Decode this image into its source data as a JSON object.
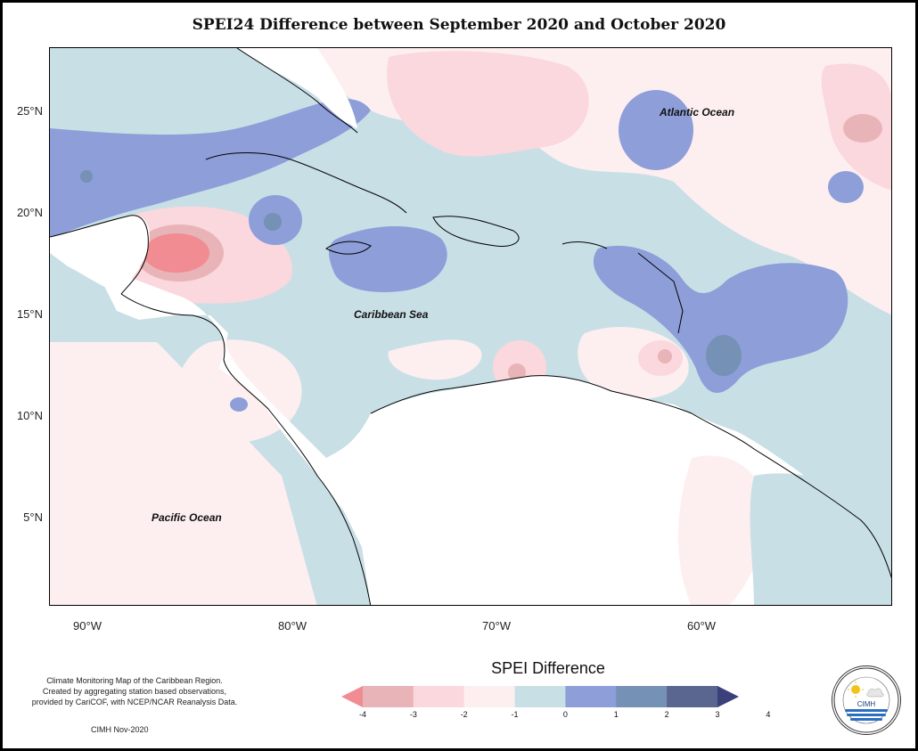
{
  "title": "SPEI24 Difference between September 2020 and October 2020",
  "map": {
    "lat_ticks": [
      "25°N",
      "20°N",
      "15°N",
      "10°N",
      "5°N"
    ],
    "lon_ticks": [
      "90°W",
      "80°W",
      "70°W",
      "60°W"
    ],
    "labels": {
      "atlantic": "Atlantic Ocean",
      "caribbean": "Caribbean Sea",
      "pacific": "Pacific Ocean"
    }
  },
  "legend": {
    "title": "SPEI Difference",
    "ticks": [
      "-4",
      "-3",
      "-2",
      "-1",
      "0",
      "1",
      "2",
      "3",
      "4"
    ],
    "colors": [
      "#f08c92",
      "#e8b4b8",
      "#fbd7de",
      "#fdeff0",
      "#c9dfe6",
      "#8d9ed9",
      "#7591b5",
      "#5a6690",
      "#3b3f7a"
    ]
  },
  "info": {
    "lines": [
      "Climate Monitoring Map of the Caribbean Region.",
      "Created by aggregating station based observations,",
      "provided by CariCOF, with NCEP/NCAR Reanalysis Data."
    ],
    "stamp": "CIMH Nov-2020"
  },
  "logo": {
    "name": "CIMH",
    "ring_text": "Caribbean Institute for Meteorology and Hydrology"
  }
}
